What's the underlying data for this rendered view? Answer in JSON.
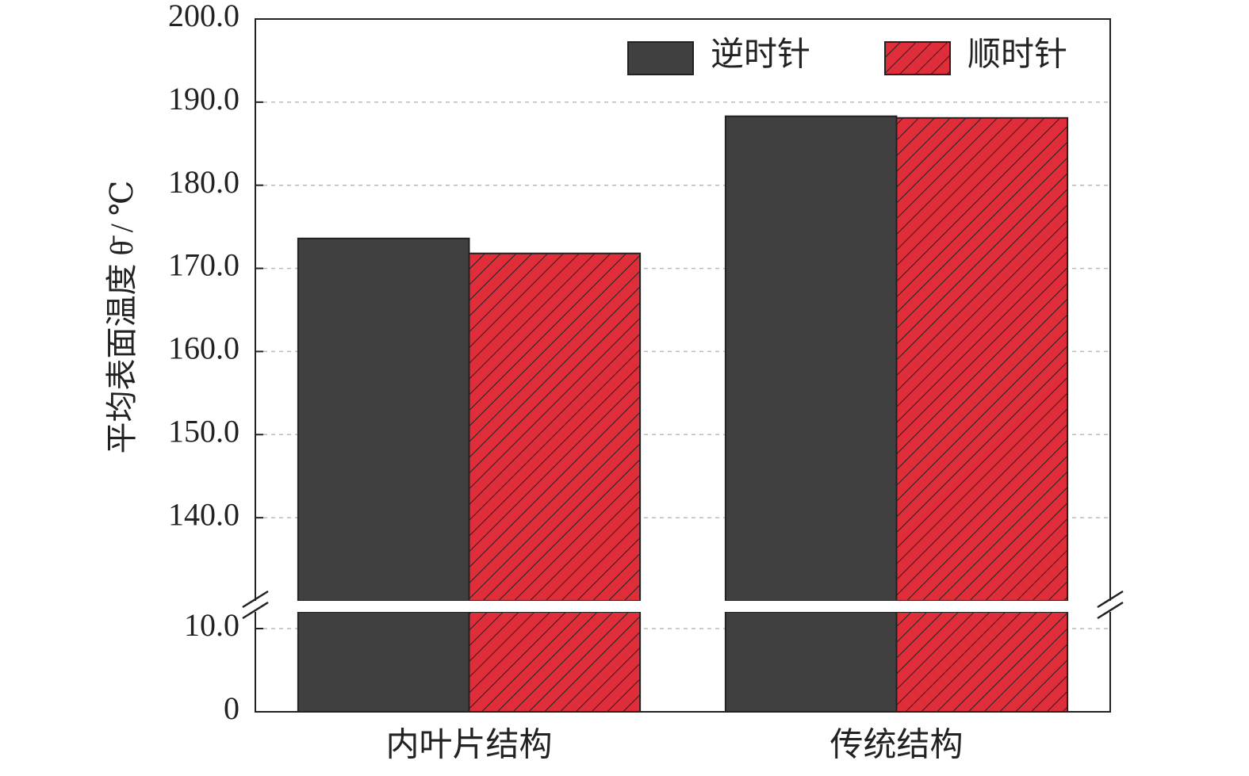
{
  "chart_data": {
    "type": "bar",
    "y_label": "平均表面温度 θ̄ / ℃",
    "categories": [
      "内叶片结构",
      "传统结构"
    ],
    "series": [
      {
        "name": "逆时针",
        "color": "#404040",
        "hatch": false,
        "values": [
          173.6,
          188.3
        ]
      },
      {
        "name": "顺时针",
        "color": "#e02d3a",
        "hatch": true,
        "values": [
          171.8,
          188.1
        ]
      }
    ],
    "ylim": [
      130,
      200
    ],
    "yticks": [
      {
        "value": 140,
        "label": "140.0"
      },
      {
        "value": 150,
        "label": "150.0"
      },
      {
        "value": 160,
        "label": "160.0"
      },
      {
        "value": 170,
        "label": "170.0"
      },
      {
        "value": 180,
        "label": "180.0"
      },
      {
        "value": 190,
        "label": "190.0"
      },
      {
        "value": 200,
        "label": "200.0"
      }
    ],
    "lower_ylim": [
      0,
      12
    ],
    "lower_yticks": [
      0,
      {
        "value": 10,
        "label": "10.0"
      }
    ],
    "grid": true,
    "legend": "top-right"
  }
}
